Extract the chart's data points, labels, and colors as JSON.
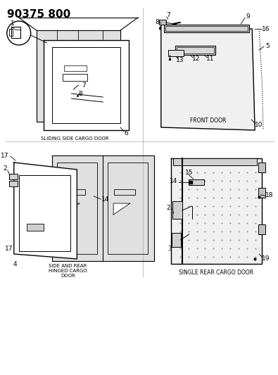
{
  "title": "90375 800",
  "bg_color": "#ffffff",
  "line_color": "#000000",
  "title_fontsize": 11,
  "diagram_labels": {
    "sliding_side_cargo_door": "SLIDING SIDE CARGO DOOR",
    "front_door": "FRONT DOOR",
    "side_and_rear_hinged": "SIDE AND REAR\nHINGED CARGO\nDOOR",
    "single_rear_cargo_door": "SINGLE REAR CARGO DOOR"
  }
}
